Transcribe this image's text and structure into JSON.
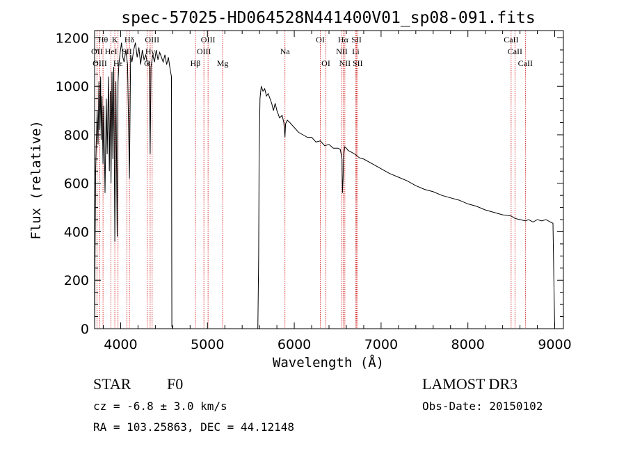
{
  "chart_data": {
    "type": "line",
    "title": "spec-57025-HD064528N441400V01_sp08-091.fits",
    "xlabel": "Wavelength (Å)",
    "ylabel": "Flux (relative)",
    "xlim": [
      3700,
      9100
    ],
    "ylim": [
      0,
      1230
    ],
    "xticks": [
      4000,
      5000,
      6000,
      7000,
      8000,
      9000
    ],
    "yticks": [
      0,
      200,
      400,
      600,
      800,
      1000,
      1200
    ],
    "series": [
      {
        "name": "spectrum",
        "x": [
          3700,
          3705,
          3712,
          3720,
          3730,
          3740,
          3750,
          3760,
          3770,
          3775,
          3785,
          3797,
          3805,
          3820,
          3835,
          3845,
          3860,
          3870,
          3880,
          3889,
          3900,
          3910,
          3920,
          3933,
          3945,
          3960,
          3970,
          3980,
          3995,
          4010,
          4025,
          4040,
          4060,
          4080,
          4101,
          4115,
          4130,
          4150,
          4170,
          4190,
          4210,
          4230,
          4250,
          4270,
          4290,
          4310,
          4330,
          4340,
          4350,
          4370,
          4390,
          4410,
          4430,
          4450,
          4470,
          4490,
          4510,
          4530,
          4550,
          4570,
          4585,
          4590,
          4600,
          5580,
          5590,
          5595,
          5605,
          5620,
          5640,
          5660,
          5680,
          5700,
          5720,
          5740,
          5760,
          5780,
          5800,
          5830,
          5860,
          5880,
          5893,
          5900,
          5920,
          5950,
          6000,
          6050,
          6100,
          6150,
          6200,
          6250,
          6300,
          6350,
          6400,
          6450,
          6500,
          6530,
          6550,
          6555,
          6563,
          6570,
          6580,
          6600,
          6620,
          6650,
          6700,
          6750,
          6800,
          6900,
          7000,
          7100,
          7200,
          7300,
          7400,
          7500,
          7600,
          7700,
          7800,
          7900,
          8000,
          8100,
          8200,
          8300,
          8400,
          8498,
          8542,
          8600,
          8662,
          8700,
          8750,
          8800,
          8850,
          8900,
          8950,
          8980,
          8990,
          9000
        ],
        "values": [
          0,
          300,
          650,
          780,
          900,
          760,
          1020,
          820,
          1040,
          780,
          960,
          680,
          920,
          560,
          950,
          720,
          1040,
          650,
          980,
          600,
          1060,
          700,
          1080,
          360,
          1020,
          380,
          1020,
          1090,
          1140,
          1180,
          1120,
          1100,
          1150,
          1090,
          620,
          1130,
          1100,
          1150,
          1180,
          1120,
          1160,
          1090,
          1150,
          1110,
          1130,
          1090,
          1100,
          720,
          1080,
          1130,
          1100,
          1150,
          1110,
          1140,
          1120,
          1100,
          1130,
          1090,
          1120,
          1070,
          1040,
          10,
          0,
          0,
          300,
          700,
          950,
          1000,
          980,
          990,
          960,
          970,
          950,
          930,
          900,
          930,
          900,
          870,
          880,
          850,
          790,
          845,
          860,
          850,
          830,
          810,
          800,
          790,
          790,
          770,
          775,
          755,
          760,
          745,
          745,
          740,
          700,
          560,
          620,
          720,
          750,
          745,
          735,
          730,
          720,
          705,
          700,
          680,
          660,
          640,
          625,
          610,
          590,
          575,
          565,
          550,
          540,
          530,
          515,
          505,
          490,
          480,
          470,
          465,
          455,
          450,
          445,
          450,
          440,
          450,
          445,
          450,
          440,
          435,
          200,
          0
        ]
      }
    ],
    "spectral_lines": [
      {
        "label": "Hθ",
        "x": 3797,
        "row": 1
      },
      {
        "label": "K",
        "x": 3933,
        "row": 1
      },
      {
        "label": "Hδ",
        "x": 4101,
        "row": 1
      },
      {
        "label": "OIII",
        "x": 4363,
        "row": 1
      },
      {
        "label": "OIII",
        "x": 5007,
        "row": 1
      },
      {
        "label": "OI",
        "x": 6300,
        "row": 1
      },
      {
        "label": "Hα",
        "x": 6563,
        "row": 1
      },
      {
        "label": "SII",
        "x": 6717,
        "row": 1
      },
      {
        "label": "CaII",
        "x": 8498,
        "row": 1
      },
      {
        "label": "OII",
        "x": 3727,
        "row": 2
      },
      {
        "label": "HeI",
        "x": 3889,
        "row": 2
      },
      {
        "label": "SII",
        "x": 4072,
        "row": 2
      },
      {
        "label": "Hγ",
        "x": 4340,
        "row": 2
      },
      {
        "label": "OIII",
        "x": 4959,
        "row": 2
      },
      {
        "label": "Na",
        "x": 5893,
        "row": 2
      },
      {
        "label": "NII",
        "x": 6548,
        "row": 2
      },
      {
        "label": "Li",
        "x": 6708,
        "row": 2
      },
      {
        "label": "CaII",
        "x": 8542,
        "row": 2
      },
      {
        "label": "OIII",
        "x": 3760,
        "row": 3
      },
      {
        "label": "Hε",
        "x": 3970,
        "row": 3
      },
      {
        "label": "G",
        "x": 4305,
        "row": 3
      },
      {
        "label": "Hβ",
        "x": 4861,
        "row": 3
      },
      {
        "label": "Mg",
        "x": 5175,
        "row": 3
      },
      {
        "label": "OI",
        "x": 6364,
        "row": 3
      },
      {
        "label": "NII",
        "x": 6583,
        "row": 3
      },
      {
        "label": "SII",
        "x": 6731,
        "row": 3
      },
      {
        "label": "CaII",
        "x": 8662,
        "row": 3
      }
    ],
    "line_color": "#cc0000",
    "data_color": "#000000"
  },
  "info": {
    "object_class": "STAR",
    "subclass": "F0",
    "survey": "LAMOST DR3",
    "cz": "cz = -6.8 ± 3.0 km/s",
    "obs_date": "Obs-Date: 20150102",
    "coords": "RA = 103.25863, DEC =  44.12148"
  }
}
